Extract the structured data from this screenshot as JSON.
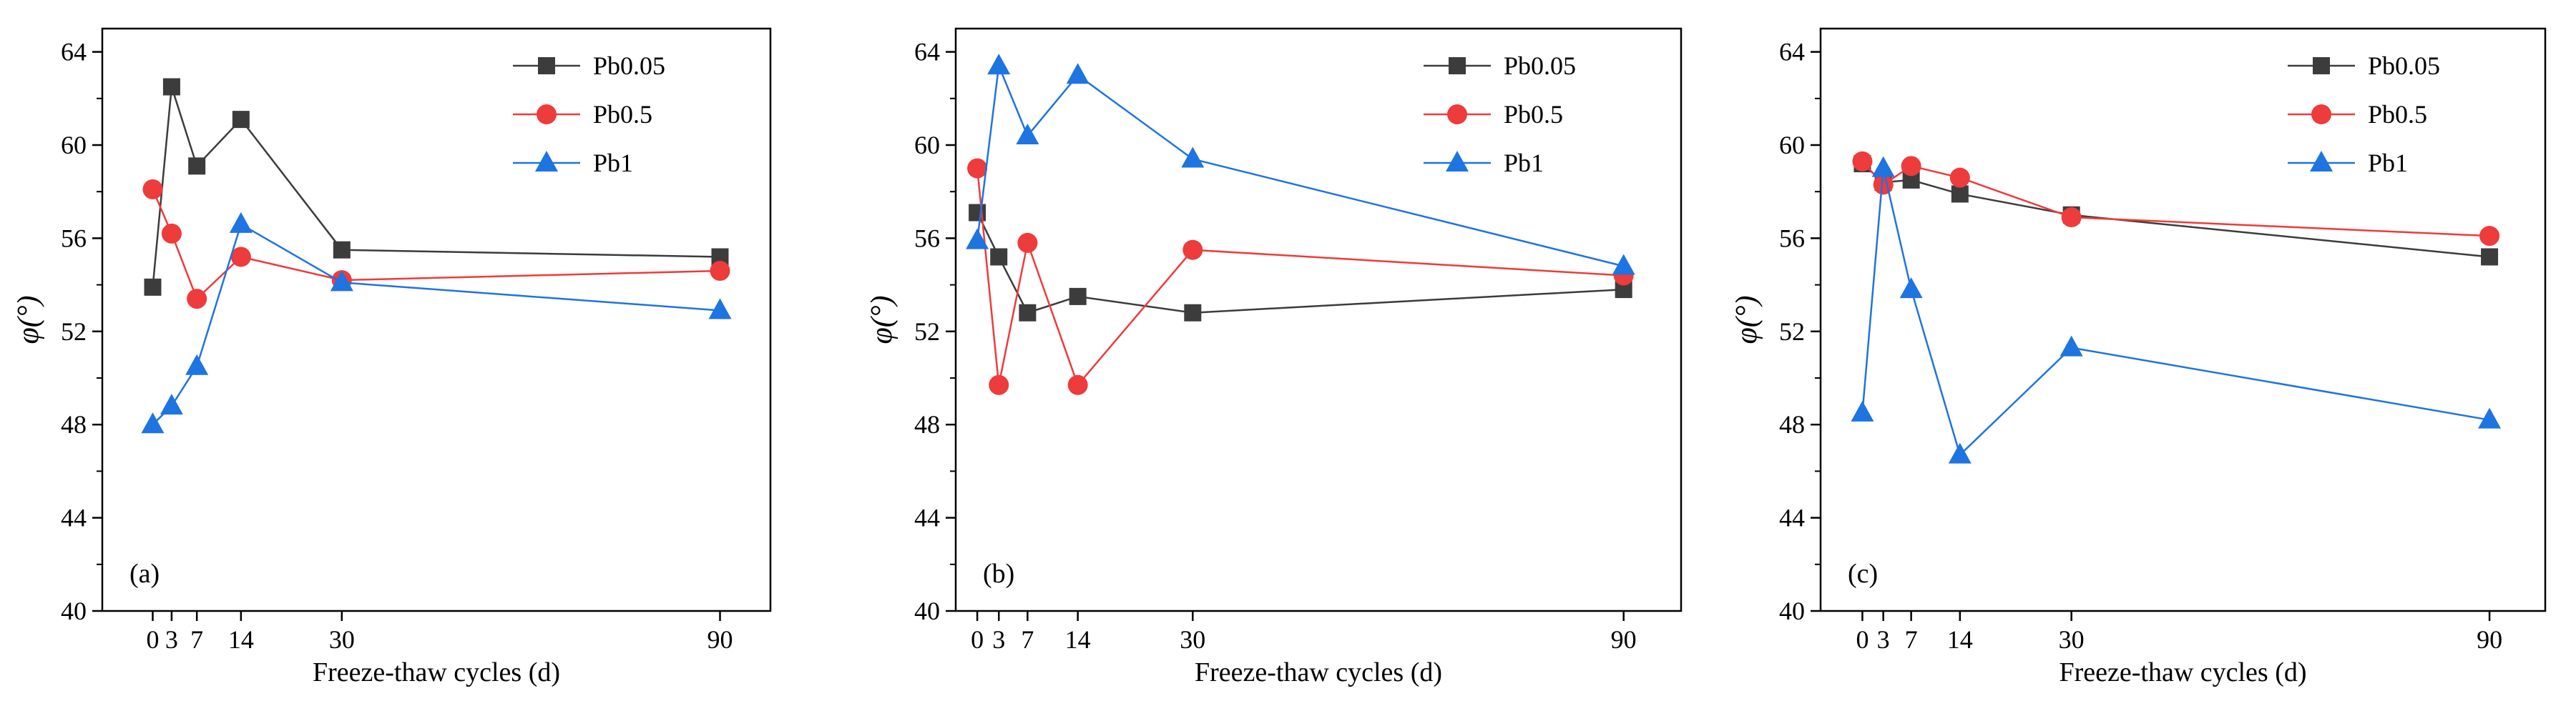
{
  "chart_data": [
    {
      "type": "line",
      "panel_label": "(a)",
      "xlabel": "Freeze-thaw cycles (d)",
      "ylabel": "φ(°)",
      "xlim": [
        -8,
        98
      ],
      "ylim": [
        40,
        65
      ],
      "xticks": [
        0,
        3,
        7,
        14,
        30,
        90
      ],
      "xtick_labels": [
        "0",
        "3",
        "7",
        "14",
        "30",
        "90"
      ],
      "yticks": [
        40,
        44,
        48,
        52,
        56,
        60,
        64
      ],
      "ytick_labels": [
        "40",
        "44",
        "48",
        "52",
        "56",
        "60",
        "64"
      ],
      "legend_position": "top-right",
      "x": [
        0,
        3,
        7,
        14,
        30,
        90
      ],
      "series": [
        {
          "name": "Pb0.05",
          "marker": "square",
          "values": [
            53.9,
            62.5,
            59.1,
            61.1,
            55.5,
            55.2
          ]
        },
        {
          "name": "Pb0.5",
          "marker": "circle",
          "values": [
            58.1,
            56.2,
            53.4,
            55.2,
            54.2,
            54.6
          ]
        },
        {
          "name": "Pb1",
          "marker": "triangle",
          "values": [
            48.0,
            48.8,
            50.5,
            56.6,
            54.1,
            52.9
          ]
        }
      ]
    },
    {
      "type": "line",
      "panel_label": "(b)",
      "xlabel": "Freeze-thaw cycles (d)",
      "ylabel": "φ(°)",
      "xlim": [
        -3,
        98
      ],
      "ylim": [
        40,
        65
      ],
      "xticks": [
        0,
        3,
        7,
        14,
        30,
        90
      ],
      "xtick_labels": [
        "0",
        "3",
        "7",
        "14",
        "30",
        "90"
      ],
      "yticks": [
        40,
        44,
        48,
        52,
        56,
        60,
        64
      ],
      "ytick_labels": [
        "40",
        "44",
        "48",
        "52",
        "56",
        "60",
        "64"
      ],
      "legend_position": "top-right",
      "x": [
        0,
        3,
        7,
        14,
        30,
        90
      ],
      "series": [
        {
          "name": "Pb0.05",
          "marker": "square",
          "values": [
            57.1,
            55.2,
            52.8,
            53.5,
            52.8,
            53.8
          ]
        },
        {
          "name": "Pb0.5",
          "marker": "circle",
          "values": [
            59.0,
            49.7,
            55.8,
            49.7,
            55.5,
            54.4
          ]
        },
        {
          "name": "Pb1",
          "marker": "triangle",
          "values": [
            55.9,
            63.4,
            60.4,
            63.0,
            59.4,
            54.8
          ]
        }
      ]
    },
    {
      "type": "line",
      "panel_label": "(c)",
      "xlabel": "Freeze-thaw cycles (d)",
      "ylabel": "φ(°)",
      "xlim": [
        -6,
        98
      ],
      "ylim": [
        40,
        65
      ],
      "xticks": [
        0,
        3,
        7,
        14,
        30,
        90
      ],
      "xtick_labels": [
        "0",
        "3",
        "7",
        "14",
        "30",
        "90"
      ],
      "yticks": [
        40,
        44,
        48,
        52,
        56,
        60,
        64
      ],
      "ytick_labels": [
        "40",
        "44",
        "48",
        "52",
        "56",
        "60",
        "64"
      ],
      "legend_position": "top-right",
      "x": [
        0,
        3,
        7,
        14,
        30,
        90
      ],
      "series": [
        {
          "name": "Pb0.05",
          "marker": "square",
          "values": [
            59.2,
            58.4,
            58.5,
            57.9,
            57.0,
            55.2
          ]
        },
        {
          "name": "Pb0.5",
          "marker": "circle",
          "values": [
            59.3,
            58.3,
            59.1,
            58.6,
            56.9,
            56.1
          ]
        },
        {
          "name": "Pb1",
          "marker": "triangle",
          "values": [
            48.5,
            59.0,
            53.8,
            46.7,
            51.3,
            48.2
          ]
        }
      ]
    }
  ],
  "colors": {
    "Pb0.05": "#3c3c3c",
    "Pb0.5": "#ee3b3b",
    "Pb1": "#1e74e0"
  }
}
